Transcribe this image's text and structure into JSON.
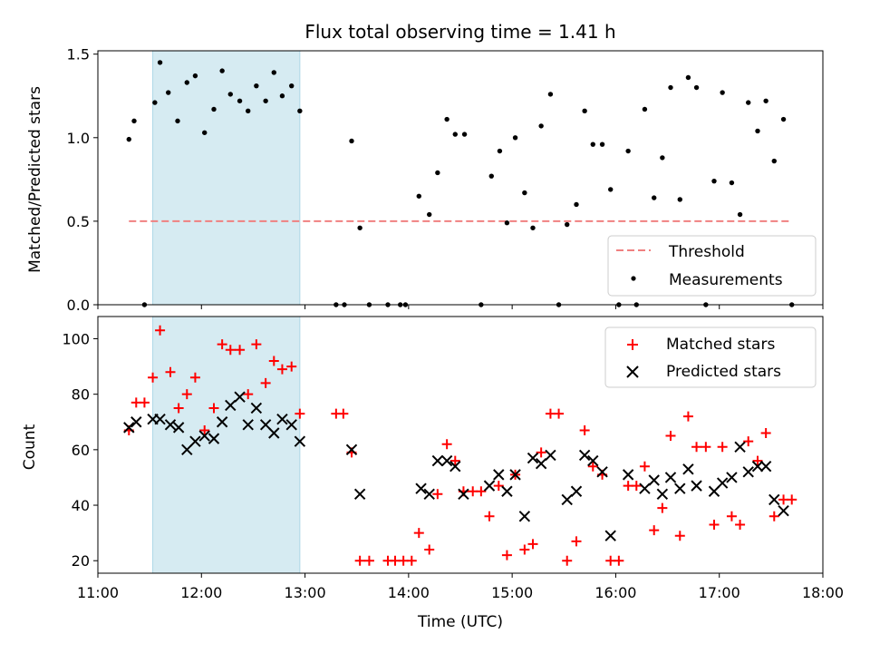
{
  "chart_data": [
    {
      "type": "scatter",
      "title": "Flux total observing time = 1.41 h",
      "xlabel": "",
      "ylabel": "Matched/Predicted stars",
      "xlim": [
        11.0,
        18.0
      ],
      "ylim": [
        0,
        1.52
      ],
      "yticks": [
        0,
        0.5,
        1.0,
        1.5
      ],
      "ytick_labels": [
        "0.0",
        "0.5",
        "1.0",
        "1.5"
      ],
      "xticks": [
        11,
        12,
        13,
        14,
        15,
        16,
        17,
        18
      ],
      "shaded_span": [
        11.53,
        12.95
      ],
      "shaded_color": "#add8e6",
      "threshold": {
        "name": "Threshold",
        "y": 0.5,
        "x_range": [
          11.3,
          17.7
        ],
        "color": "#f08080"
      },
      "legend_position": "lower right",
      "series": [
        {
          "name": "Measurements",
          "color": "#000000",
          "marker": "dot",
          "points": [
            [
              11.3,
              0.99
            ],
            [
              11.35,
              1.1
            ],
            [
              11.45,
              0.0
            ],
            [
              11.55,
              1.21
            ],
            [
              11.6,
              1.45
            ],
            [
              11.68,
              1.27
            ],
            [
              11.77,
              1.1
            ],
            [
              11.86,
              1.33
            ],
            [
              11.94,
              1.37
            ],
            [
              12.03,
              1.03
            ],
            [
              12.12,
              1.17
            ],
            [
              12.2,
              1.4
            ],
            [
              12.28,
              1.26
            ],
            [
              12.37,
              1.22
            ],
            [
              12.45,
              1.16
            ],
            [
              12.53,
              1.31
            ],
            [
              12.62,
              1.22
            ],
            [
              12.7,
              1.39
            ],
            [
              12.78,
              1.25
            ],
            [
              12.87,
              1.31
            ],
            [
              12.95,
              1.16
            ],
            [
              13.3,
              0.0
            ],
            [
              13.38,
              0.0
            ],
            [
              13.45,
              0.98
            ],
            [
              13.53,
              0.46
            ],
            [
              13.62,
              0.0
            ],
            [
              13.8,
              0.0
            ],
            [
              13.92,
              0.0
            ],
            [
              13.97,
              0.0
            ],
            [
              14.1,
              0.65
            ],
            [
              14.2,
              0.54
            ],
            [
              14.28,
              0.79
            ],
            [
              14.37,
              1.11
            ],
            [
              14.45,
              1.02
            ],
            [
              14.54,
              1.02
            ],
            [
              14.7,
              0.0
            ],
            [
              14.8,
              0.77
            ],
            [
              14.88,
              0.92
            ],
            [
              14.95,
              0.49
            ],
            [
              15.03,
              1.0
            ],
            [
              15.12,
              0.67
            ],
            [
              15.2,
              0.46
            ],
            [
              15.28,
              1.07
            ],
            [
              15.37,
              1.26
            ],
            [
              15.45,
              0.0
            ],
            [
              15.53,
              0.48
            ],
            [
              15.62,
              0.6
            ],
            [
              15.7,
              1.16
            ],
            [
              15.78,
              0.96
            ],
            [
              15.87,
              0.96
            ],
            [
              15.95,
              0.69
            ],
            [
              16.03,
              0.0
            ],
            [
              16.12,
              0.92
            ],
            [
              16.2,
              0.0
            ],
            [
              16.28,
              1.17
            ],
            [
              16.37,
              0.64
            ],
            [
              16.45,
              0.88
            ],
            [
              16.53,
              1.3
            ],
            [
              16.62,
              0.63
            ],
            [
              16.7,
              1.36
            ],
            [
              16.78,
              1.3
            ],
            [
              16.87,
              0.0
            ],
            [
              16.95,
              0.74
            ],
            [
              17.03,
              1.27
            ],
            [
              17.12,
              0.73
            ],
            [
              17.2,
              0.54
            ],
            [
              17.28,
              1.21
            ],
            [
              17.37,
              1.04
            ],
            [
              17.45,
              1.22
            ],
            [
              17.53,
              0.86
            ],
            [
              17.62,
              1.11
            ],
            [
              17.7,
              0.0
            ]
          ]
        }
      ]
    },
    {
      "type": "scatter",
      "title": "",
      "xlabel": "Time (UTC)",
      "ylabel": "Count",
      "xlim": [
        11.0,
        18.0
      ],
      "ylim": [
        15.5,
        108
      ],
      "yticks": [
        20,
        40,
        60,
        80,
        100
      ],
      "xticks": [
        11,
        12,
        13,
        14,
        15,
        16,
        17,
        18
      ],
      "xtick_labels": [
        "11:00",
        "12:00",
        "13:00",
        "14:00",
        "15:00",
        "16:00",
        "17:00",
        "18:00"
      ],
      "shaded_span": [
        11.53,
        12.95
      ],
      "shaded_color": "#add8e6",
      "legend_position": "upper right",
      "series": [
        {
          "name": "Matched stars",
          "color": "#ff0000",
          "marker": "plus",
          "points": [
            [
              11.3,
              67
            ],
            [
              11.37,
              77
            ],
            [
              11.45,
              77
            ],
            [
              11.53,
              86
            ],
            [
              11.6,
              103
            ],
            [
              11.7,
              88
            ],
            [
              11.78,
              75
            ],
            [
              11.86,
              80
            ],
            [
              11.94,
              86
            ],
            [
              12.03,
              67
            ],
            [
              12.12,
              75
            ],
            [
              12.2,
              98
            ],
            [
              12.28,
              96
            ],
            [
              12.37,
              96
            ],
            [
              12.45,
              80
            ],
            [
              12.53,
              98
            ],
            [
              12.62,
              84
            ],
            [
              12.7,
              92
            ],
            [
              12.78,
              89
            ],
            [
              12.87,
              90
            ],
            [
              12.95,
              73
            ],
            [
              13.3,
              73
            ],
            [
              13.37,
              73
            ],
            [
              13.45,
              59
            ],
            [
              13.53,
              20
            ],
            [
              13.62,
              20
            ],
            [
              13.8,
              20
            ],
            [
              13.87,
              20
            ],
            [
              13.95,
              20
            ],
            [
              14.03,
              20
            ],
            [
              14.1,
              30
            ],
            [
              14.2,
              24
            ],
            [
              14.28,
              44
            ],
            [
              14.37,
              62
            ],
            [
              14.45,
              56
            ],
            [
              14.53,
              45
            ],
            [
              14.62,
              45
            ],
            [
              14.7,
              45
            ],
            [
              14.78,
              36
            ],
            [
              14.87,
              47
            ],
            [
              14.95,
              22
            ],
            [
              15.03,
              51
            ],
            [
              15.12,
              24
            ],
            [
              15.2,
              26
            ],
            [
              15.28,
              59
            ],
            [
              15.37,
              73
            ],
            [
              15.45,
              73
            ],
            [
              15.53,
              20
            ],
            [
              15.62,
              27
            ],
            [
              15.7,
              67
            ],
            [
              15.78,
              54
            ],
            [
              15.87,
              51
            ],
            [
              15.95,
              20
            ],
            [
              16.03,
              20
            ],
            [
              16.12,
              47
            ],
            [
              16.2,
              47
            ],
            [
              16.28,
              54
            ],
            [
              16.37,
              31
            ],
            [
              16.45,
              39
            ],
            [
              16.53,
              65
            ],
            [
              16.62,
              29
            ],
            [
              16.7,
              72
            ],
            [
              16.78,
              61
            ],
            [
              16.87,
              61
            ],
            [
              16.95,
              33
            ],
            [
              17.03,
              61
            ],
            [
              17.12,
              36
            ],
            [
              17.2,
              33
            ],
            [
              17.28,
              63
            ],
            [
              17.37,
              56
            ],
            [
              17.45,
              66
            ],
            [
              17.53,
              36
            ],
            [
              17.62,
              42
            ],
            [
              17.7,
              42
            ]
          ]
        },
        {
          "name": "Predicted stars",
          "color": "#000000",
          "marker": "x",
          "points": [
            [
              11.3,
              68
            ],
            [
              11.37,
              70
            ],
            [
              11.53,
              71
            ],
            [
              11.6,
              71
            ],
            [
              11.7,
              69
            ],
            [
              11.78,
              68
            ],
            [
              11.86,
              60
            ],
            [
              11.94,
              63
            ],
            [
              12.03,
              65
            ],
            [
              12.12,
              64
            ],
            [
              12.2,
              70
            ],
            [
              12.28,
              76
            ],
            [
              12.37,
              79
            ],
            [
              12.45,
              69
            ],
            [
              12.53,
              75
            ],
            [
              12.62,
              69
            ],
            [
              12.7,
              66
            ],
            [
              12.78,
              71
            ],
            [
              12.87,
              69
            ],
            [
              12.95,
              63
            ],
            [
              13.45,
              60
            ],
            [
              13.53,
              44
            ],
            [
              14.12,
              46
            ],
            [
              14.2,
              44
            ],
            [
              14.28,
              56
            ],
            [
              14.37,
              56
            ],
            [
              14.45,
              54
            ],
            [
              14.53,
              44
            ],
            [
              14.78,
              47
            ],
            [
              14.87,
              51
            ],
            [
              14.95,
              45
            ],
            [
              15.03,
              51
            ],
            [
              15.12,
              36
            ],
            [
              15.2,
              57
            ],
            [
              15.28,
              55
            ],
            [
              15.37,
              58
            ],
            [
              15.53,
              42
            ],
            [
              15.62,
              45
            ],
            [
              15.7,
              58
            ],
            [
              15.78,
              56
            ],
            [
              15.87,
              52
            ],
            [
              15.95,
              29
            ],
            [
              16.12,
              51
            ],
            [
              16.28,
              46
            ],
            [
              16.37,
              49
            ],
            [
              16.45,
              44
            ],
            [
              16.53,
              50
            ],
            [
              16.62,
              46
            ],
            [
              16.7,
              53
            ],
            [
              16.78,
              47
            ],
            [
              16.95,
              45
            ],
            [
              17.03,
              48
            ],
            [
              17.12,
              50
            ],
            [
              17.2,
              61
            ],
            [
              17.28,
              52
            ],
            [
              17.37,
              54
            ],
            [
              17.45,
              54
            ],
            [
              17.53,
              42
            ],
            [
              17.62,
              38
            ]
          ]
        }
      ]
    }
  ]
}
